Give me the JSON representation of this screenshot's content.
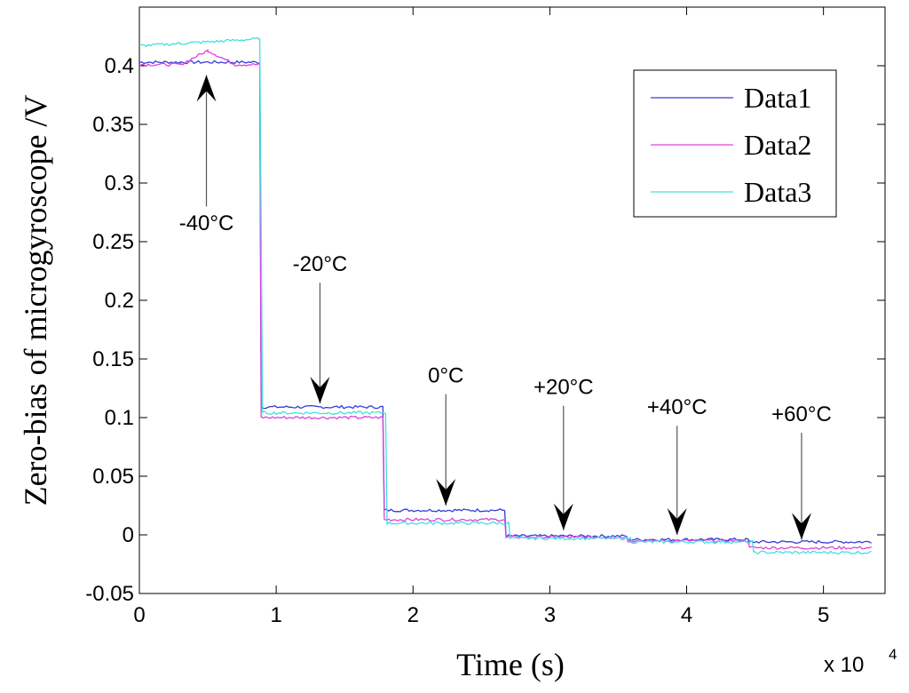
{
  "chart_data": {
    "type": "line",
    "title": "",
    "xlabel": "Time (s)",
    "ylabel": "Zero-bias of microgyroscope /V",
    "x_multiplier": "x 10",
    "x_multiplier_exp": "4",
    "xlim": [
      0,
      5.45
    ],
    "ylim": [
      -0.05,
      0.45
    ],
    "xticks": [
      0,
      1,
      2,
      3,
      4,
      5
    ],
    "xtick_labels": [
      "0",
      "1",
      "2",
      "3",
      "4",
      "5"
    ],
    "yticks": [
      -0.05,
      0,
      0.05,
      0.1,
      0.15,
      0.2,
      0.25,
      0.3,
      0.35,
      0.4
    ],
    "ytick_labels": [
      "-0.05",
      "0",
      "0.05",
      "0.1",
      "0.15",
      "0.2",
      "0.25",
      "0.3",
      "0.35",
      "0.4"
    ],
    "grid": false,
    "legend_position": "top-right",
    "series": [
      {
        "name": "Data1",
        "color": "#3a3ad8",
        "x": [
          0,
          0.88,
          0.89,
          1.78,
          1.79,
          2.67,
          2.68,
          3.56,
          3.57,
          4.45,
          4.46,
          5.35
        ],
        "y": [
          0.403,
          0.403,
          0.109,
          0.109,
          0.021,
          0.021,
          -0.001,
          -0.001,
          -0.004,
          -0.004,
          -0.006,
          -0.006
        ]
      },
      {
        "name": "Data2",
        "color": "#e040e0",
        "x": [
          0,
          0.3,
          0.5,
          0.7,
          0.88,
          0.89,
          1.78,
          1.79,
          2.67,
          2.68,
          3.56,
          3.57,
          4.45,
          4.46,
          5.35
        ],
        "y": [
          0.401,
          0.401,
          0.413,
          0.401,
          0.401,
          0.1,
          0.1,
          0.013,
          0.013,
          -0.002,
          -0.002,
          -0.005,
          -0.005,
          -0.011,
          -0.011
        ]
      },
      {
        "name": "Data3",
        "color": "#40e0e0",
        "x": [
          0,
          0.3,
          0.6,
          0.88,
          0.9,
          1.8,
          1.81,
          2.7,
          2.71,
          3.59,
          3.6,
          4.48,
          4.49,
          5.35
        ],
        "y": [
          0.417,
          0.419,
          0.421,
          0.423,
          0.104,
          0.104,
          0.01,
          0.01,
          -0.003,
          -0.003,
          -0.006,
          -0.006,
          -0.015,
          -0.015
        ]
      }
    ],
    "annotations": [
      {
        "label": "-40°C",
        "arrow_x": 0.49,
        "arrow_tip_y": 0.392,
        "arrow_tail_y": 0.28,
        "direction": "up",
        "label_y": 0.26
      },
      {
        "label": "-20°C",
        "arrow_x": 1.32,
        "arrow_tip_y": 0.112,
        "arrow_tail_y": 0.215,
        "direction": "down",
        "label_y": 0.225
      },
      {
        "label": "0°C",
        "arrow_x": 2.24,
        "arrow_tip_y": 0.025,
        "arrow_tail_y": 0.12,
        "direction": "down",
        "label_y": 0.13
      },
      {
        "label": "+20°C",
        "arrow_x": 3.1,
        "arrow_tip_y": 0.004,
        "arrow_tail_y": 0.11,
        "direction": "down",
        "label_y": 0.12
      },
      {
        "label": "+40°C",
        "arrow_x": 3.93,
        "arrow_tip_y": 0.0,
        "arrow_tail_y": 0.093,
        "direction": "down",
        "label_y": 0.103
      },
      {
        "label": "+60°C",
        "arrow_x": 4.84,
        "arrow_tip_y": -0.004,
        "arrow_tail_y": 0.087,
        "direction": "down",
        "label_y": 0.097
      }
    ]
  }
}
